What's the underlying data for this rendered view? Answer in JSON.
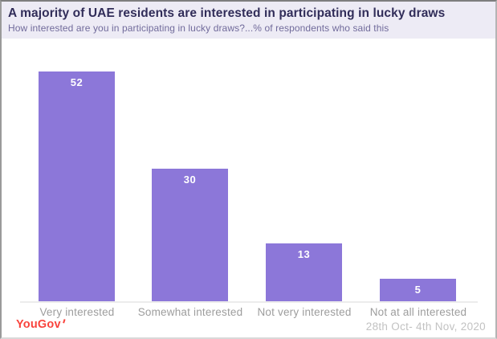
{
  "header": {
    "title": "A majority of UAE residents are interested in participating in lucky draws",
    "subtitle": "How interested are you in participating in lucky draws?...% of respondents who said this"
  },
  "chart_data": {
    "type": "bar",
    "title": "A majority of UAE residents are interested in participating in lucky draws",
    "subtitle": "How interested are you in participating in lucky draws?...% of respondents who said this",
    "categories": [
      "Very interested",
      "Somewhat interested",
      "Not very interested",
      "Not at all interested"
    ],
    "values": [
      52,
      30,
      13,
      5
    ],
    "xlabel": "",
    "ylabel": "",
    "ylim": [
      0,
      60
    ],
    "grid": false,
    "legend": false,
    "data_labels": "inside-top, white bold",
    "bar_color": "#8c77d9"
  },
  "footer": {
    "logo_text": "YouGov",
    "date_range": "28th Oct- 4th Nov, 2020"
  },
  "colors": {
    "header_background": "#edebf5",
    "title_text": "#312d59",
    "subtitle_text": "#716b9b",
    "bar": "#8c77d9",
    "bar_value_text": "#ffffff",
    "category_text": "#9d9d9d",
    "axis_line": "#ececec",
    "logo_red": "#f9433c",
    "date_text": "#c2c2c2"
  }
}
